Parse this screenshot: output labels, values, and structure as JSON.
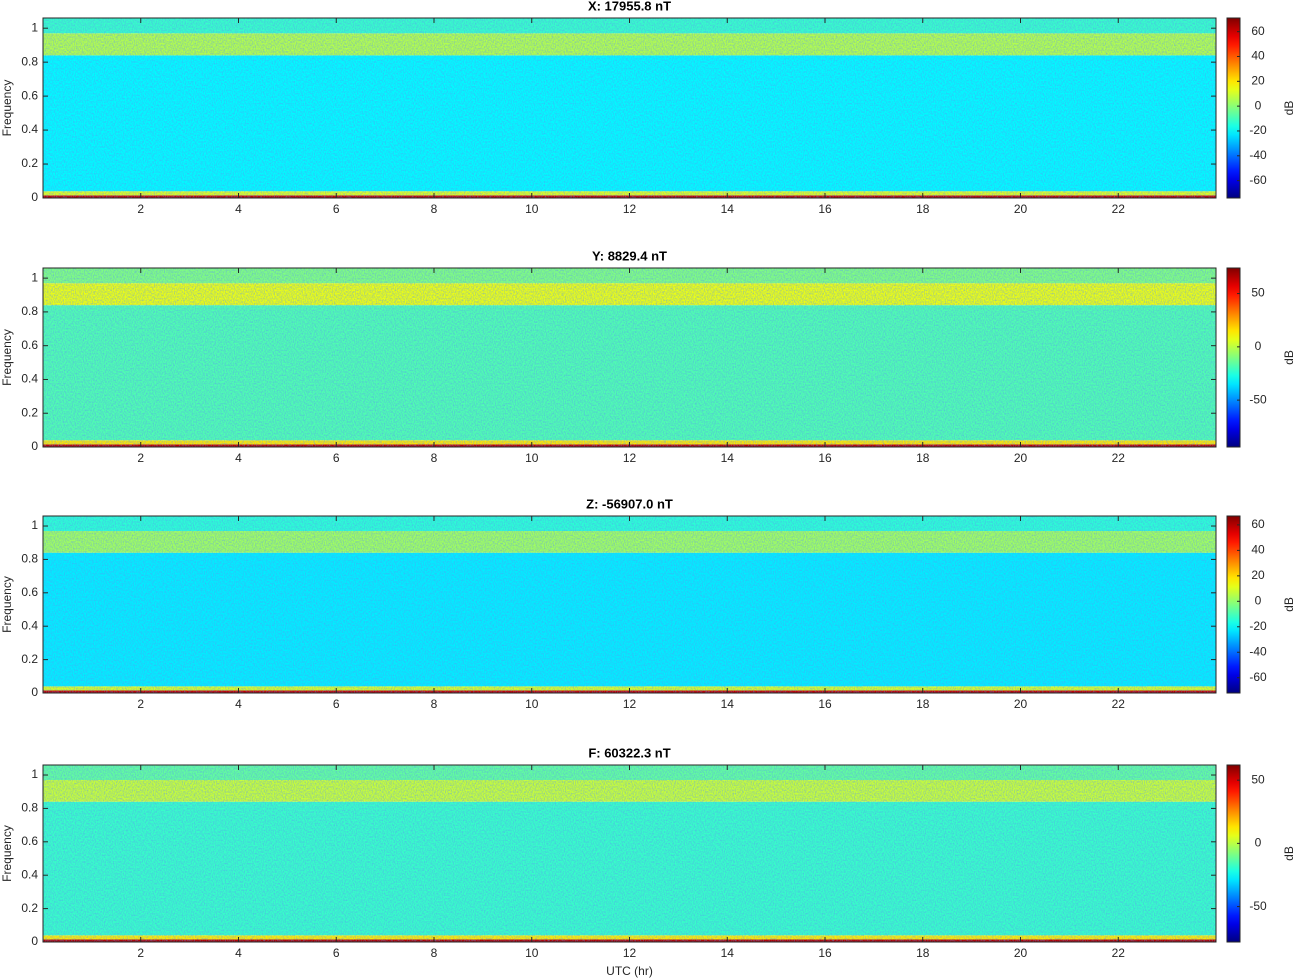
{
  "chart_data": [
    {
      "type": "heatmap",
      "title": "X: 17955.8 nT",
      "ylabel": "Frequency",
      "xlim": [
        0,
        24
      ],
      "xticks": [
        2,
        4,
        6,
        8,
        10,
        12,
        14,
        16,
        18,
        20,
        22
      ],
      "ylim": [
        0,
        1.06
      ],
      "yticks": [
        0,
        0.2,
        0.4,
        0.6,
        0.8,
        1
      ],
      "freq_edges": [
        0,
        0.015,
        0.04,
        0.84,
        0.97,
        1.06
      ],
      "values": [
        62,
        12,
        -20,
        6,
        -12
      ],
      "colorbar": {
        "label": "dB",
        "clim": [
          -74,
          71
        ],
        "ticks": [
          -60,
          -40,
          -20,
          0,
          20,
          40,
          60
        ]
      }
    },
    {
      "type": "heatmap",
      "title": "Y: 8829.4 nT",
      "ylabel": "Frequency",
      "xlim": [
        0,
        24
      ],
      "xticks": [
        2,
        4,
        6,
        8,
        10,
        12,
        14,
        16,
        18,
        20,
        22
      ],
      "ylim": [
        0,
        1.06
      ],
      "yticks": [
        0,
        0.2,
        0.4,
        0.6,
        0.8,
        1
      ],
      "freq_edges": [
        0,
        0.015,
        0.04,
        0.84,
        0.97,
        1.06
      ],
      "values": [
        64,
        15,
        -18,
        8,
        -10
      ],
      "colorbar": {
        "label": "dB",
        "clim": [
          -94,
          74
        ],
        "ticks": [
          -50,
          0,
          50
        ]
      }
    },
    {
      "type": "heatmap",
      "title": "Z: -56907.0 nT",
      "ylabel": "Frequency",
      "xlim": [
        0,
        24
      ],
      "xticks": [
        2,
        4,
        6,
        8,
        10,
        12,
        14,
        16,
        18,
        20,
        22
      ],
      "ylim": [
        0,
        1.06
      ],
      "yticks": [
        0,
        0.2,
        0.4,
        0.6,
        0.8,
        1
      ],
      "freq_edges": [
        0,
        0.015,
        0.04,
        0.84,
        0.97,
        1.06
      ],
      "values": [
        58,
        10,
        -22,
        2,
        -14
      ],
      "colorbar": {
        "label": "dB",
        "clim": [
          -72,
          67
        ],
        "ticks": [
          -60,
          -40,
          -20,
          0,
          20,
          40,
          60
        ]
      }
    },
    {
      "type": "heatmap",
      "title": "F: 60322.3 nT",
      "ylabel": "Frequency",
      "xlabel": "UTC (hr)",
      "xlim": [
        0,
        24
      ],
      "xticks": [
        2,
        4,
        6,
        8,
        10,
        12,
        14,
        16,
        18,
        20,
        22
      ],
      "ylim": [
        0,
        1.06
      ],
      "yticks": [
        0,
        0.2,
        0.4,
        0.6,
        0.8,
        1
      ],
      "freq_edges": [
        0,
        0.015,
        0.04,
        0.84,
        0.97,
        1.06
      ],
      "values": [
        55,
        12,
        -18,
        2,
        -12
      ],
      "colorbar": {
        "label": "dB",
        "clim": [
          -78,
          62
        ],
        "ticks": [
          -50,
          0,
          50
        ]
      }
    }
  ]
}
